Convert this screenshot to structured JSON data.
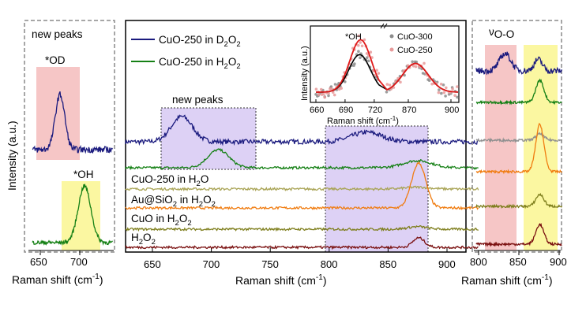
{
  "chart_data": [
    {
      "type": "line",
      "xlabel": "Raman shift (cm⁻¹)",
      "ylabel": "Intensity (a.u.)",
      "xlim": [
        640,
        740
      ],
      "x_ticks": [
        650,
        700
      ],
      "panel_title": "new peaks",
      "box_style": "dashed gray border",
      "highlight_bands": [
        {
          "x_range": [
            647,
            700
          ],
          "color": "#f6c6c6",
          "applies_to": "CuO-250 in D2O2"
        },
        {
          "x_range": [
            677,
            726
          ],
          "color": "#fbf7a1",
          "applies_to": "CuO-250 in H2O2"
        }
      ],
      "annotations": [
        "*OD",
        "*OH"
      ],
      "series": [
        {
          "name": "CuO-250 in D2O2",
          "color": "#1a1a7e",
          "peaks": [
            {
              "center": 675,
              "label": "*OD"
            }
          ]
        },
        {
          "name": "CuO-250 in H2O2",
          "color": "#158015",
          "peaks": [
            {
              "center": 706,
              "label": "*OH"
            }
          ]
        }
      ]
    },
    {
      "type": "line",
      "xlabel": "Raman shift (cm⁻¹)",
      "xlim": [
        625,
        930
      ],
      "x_ticks": [
        650,
        700,
        750,
        800,
        850,
        900
      ],
      "highlight_bands": [
        {
          "x_range": [
            654,
            738
          ],
          "color": "#ddd1f5",
          "label": "new peaks",
          "border": "dotted"
        },
        {
          "x_range": [
            803,
            894
          ],
          "color": "#ddd1f5",
          "label": "",
          "border": "dotted"
        }
      ],
      "legend": [
        "CuO-250 in D2O2",
        "CuO-250 in H2O2"
      ],
      "legend_position": "top-left",
      "series": [
        {
          "name": "CuO-250 in D2O2",
          "color": "#1a1a7e",
          "peaks": [
            {
              "center": 675,
              "height": 0.4
            },
            {
              "center": 832,
              "height": 0.15
            }
          ]
        },
        {
          "name": "CuO-250 in H2O2",
          "color": "#158015",
          "peaks": [
            {
              "center": 706,
              "height": 0.38
            },
            {
              "center": 875,
              "height": 0.15
            }
          ]
        },
        {
          "name": "CuO-250 in H2O",
          "color": "#a9a456",
          "peaks": [
            {
              "center": 875,
              "height": 0.06
            }
          ]
        },
        {
          "name": "Au@SiO2 in H2O2",
          "color": "#f07c10",
          "peaks": [
            {
              "center": 876,
              "height": 0.95
            }
          ]
        },
        {
          "name": "CuO in H2O2",
          "color": "#7e7e1c",
          "peaks": [
            {
              "center": 875,
              "height": 0.08
            }
          ]
        },
        {
          "name": "H2O2",
          "color": "#7a1010",
          "peaks": [
            {
              "center": 876,
              "height": 0.3
            }
          ]
        }
      ]
    },
    {
      "type": "scatter",
      "xlabel": "Raman shift (cm⁻¹)",
      "ylabel": "Intensity (a.u.)",
      "x_ticks": [
        "660",
        "690",
        "720",
        "870",
        "900"
      ],
      "x_break": true,
      "annotations": [
        "*OH"
      ],
      "legend": [
        "CuO-300",
        "CuO-250"
      ],
      "series": [
        {
          "name": "CuO-300",
          "marker": "gray circles",
          "color": "#8c8c8c",
          "fit_color": "#000000",
          "peaks": [
            {
              "center": 705,
              "height": 0.68
            },
            {
              "center": 875,
              "height": 0.52
            }
          ]
        },
        {
          "name": "CuO-250",
          "marker": "pink circles",
          "color": "#e79a9a",
          "fit_color": "#e11a1a",
          "peaks": [
            {
              "center": 706,
              "height": 0.95
            },
            {
              "center": 875,
              "height": 0.52
            }
          ]
        }
      ]
    },
    {
      "type": "line",
      "xlabel": "Raman shift (cm⁻¹)",
      "xlim": [
        795,
        905
      ],
      "x_ticks": [
        800,
        850,
        900
      ],
      "panel_title": "νO-O",
      "box_style": "dashed gray border",
      "highlight_bands": [
        {
          "x_range": [
            808,
            848
          ],
          "color": "#f6c6c6"
        },
        {
          "x_range": [
            857,
            895
          ],
          "color": "#fbf7a1"
        }
      ],
      "series": [
        {
          "name": "CuO-250 in D2O2",
          "color": "#1a1a7e",
          "peaks": [
            {
              "center": 833,
              "height": 0.3
            },
            {
              "center": 874,
              "height": 0.2
            }
          ]
        },
        {
          "name": "CuO-250 in H2O2",
          "color": "#158015",
          "peaks": [
            {
              "center": 876,
              "height": 0.35
            }
          ]
        },
        {
          "name": "CuO-250 in H2O",
          "color": "#8f8f8f",
          "peaks": [
            {
              "center": 876,
              "height": 0.08
            }
          ]
        },
        {
          "name": "Au@SiO2 in H2O2",
          "color": "#f07c10",
          "peaks": [
            {
              "center": 876,
              "height": 1.0
            }
          ]
        },
        {
          "name": "CuO in H2O2",
          "color": "#7e7e1c",
          "peaks": [
            {
              "center": 876,
              "height": 0.2
            }
          ]
        },
        {
          "name": "H2O2",
          "color": "#7a1010",
          "peaks": [
            {
              "center": 876,
              "height": 0.45
            }
          ]
        }
      ]
    }
  ],
  "text": {
    "ylabel": "Intensity (a.u.)",
    "xlabel": "Raman shift (cm",
    "xlabel_sup": "-1",
    "xlabel_end": ")",
    "left_title": "new peaks",
    "left_od": "*OD",
    "left_oh": "*OH",
    "main_newpeaks": "new peaks",
    "leg1_a": "CuO-250 in D",
    "leg1_s1": "2",
    "leg1_b": "O",
    "leg1_s2": "2",
    "leg2_a": "CuO-250 in H",
    "leg2_s1": "2",
    "leg2_b": "O",
    "leg2_s2": "2",
    "lab_h2o_a": "CuO-250 in H",
    "lab_h2o_s": "2",
    "lab_h2o_b": "O",
    "lab_au_a": "Au@SiO",
    "lab_au_s1": "2",
    "lab_au_b": " in H",
    "lab_au_s2": "2",
    "lab_au_c": "O",
    "lab_au_s3": "2",
    "lab_cuo_a": "CuO in H",
    "lab_cuo_s1": "2",
    "lab_cuo_b": "O",
    "lab_cuo_s2": "2",
    "lab_h2o2_a": "H",
    "lab_h2o2_s1": "2",
    "lab_h2o2_b": "O",
    "lab_h2o2_s2": "2",
    "inset_oh": "*OH",
    "inset_leg1": "CuO-300",
    "inset_leg2": "CuO-250",
    "inset_ylabel": "Intensity (a.u.)",
    "inset_xlabel": "Raman shift (cm",
    "inset_xlabel_sup": "-1",
    "inset_xlabel_end": ")",
    "right_title_nu": "ν",
    "right_title_oo": "O-O",
    "main_ticks": [
      "650",
      "700",
      "750",
      "800",
      "850",
      "900"
    ],
    "left_ticks": [
      "650",
      "700"
    ],
    "right_ticks": [
      "800",
      "850",
      "900"
    ],
    "inset_ticks": [
      "660",
      "690",
      "720",
      "870",
      "900"
    ]
  }
}
